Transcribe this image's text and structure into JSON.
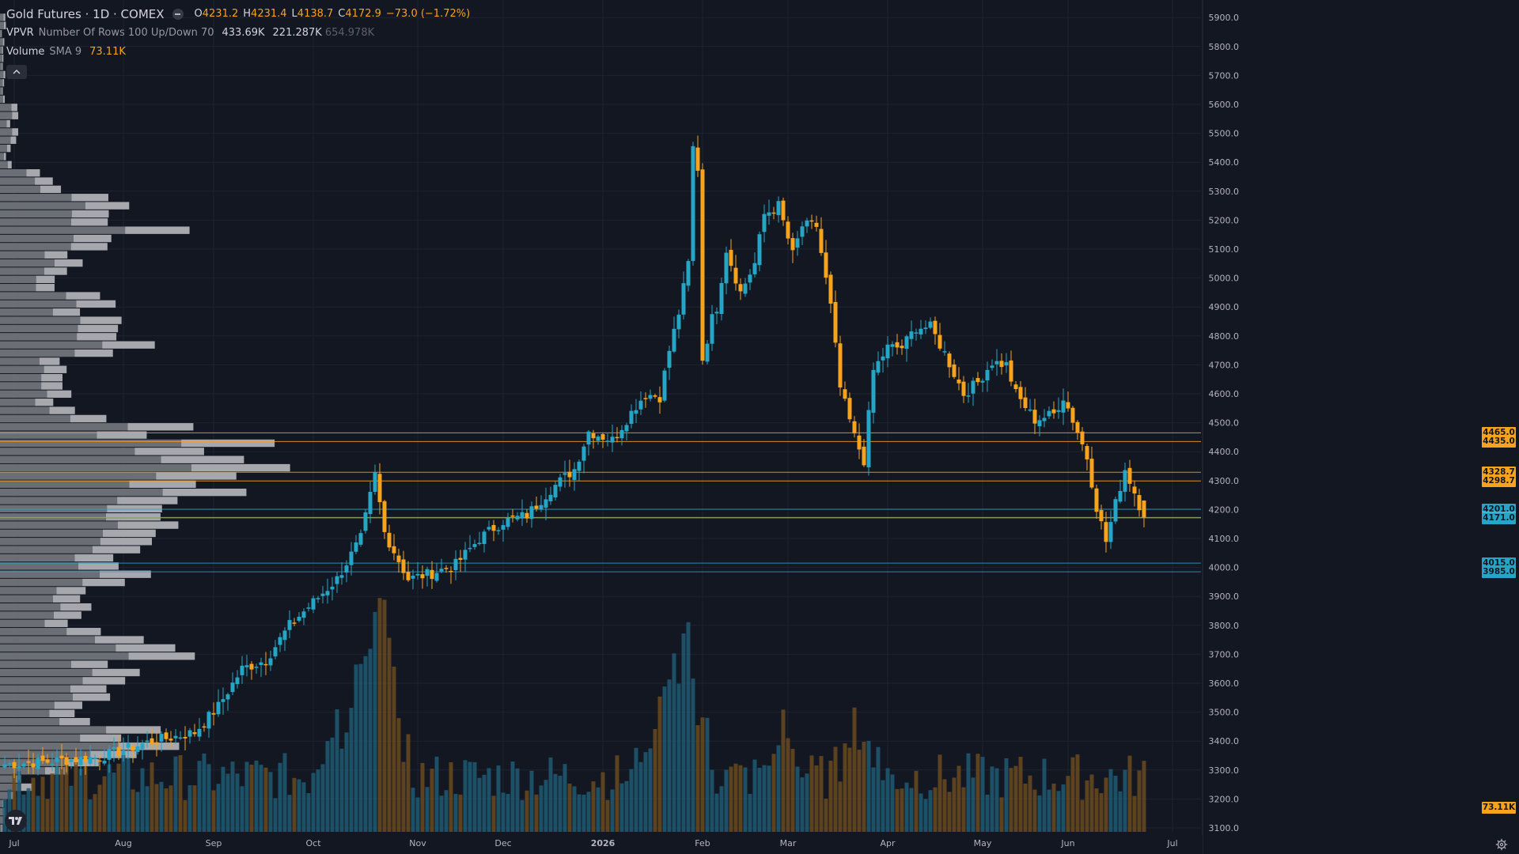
{
  "header": {
    "symbol": "Gold Futures · 1D · COMEX",
    "o_label": "O",
    "o_val": "4231.2",
    "h_label": "H",
    "h_val": "4231.4",
    "l_label": "L",
    "l_val": "4138.7",
    "c_label": "C",
    "c_val": "4172.9",
    "change": "−73.0 (−1.72%)"
  },
  "vpvr": {
    "name": "VPVR",
    "params": "Number Of Rows 100 Up/Down 70",
    "up": "433.69K",
    "down": "221.287K",
    "total": "654.978K"
  },
  "volume_ind": {
    "name": "Volume",
    "params": "SMA 9",
    "value": "73.11K"
  },
  "collapse_icon": "chevron-up-icon",
  "logo_icon": "tradingview-logo",
  "settings_icon": "gear-icon",
  "colors": {
    "background": "#131722",
    "up": "#26a6c7",
    "down": "#f7a31c",
    "grid": "#1f2330",
    "axis_text": "#b2b5be",
    "profile": "#8c8f96"
  },
  "price_tags": [
    {
      "label": "4465.0",
      "price": 4465,
      "kind": "down"
    },
    {
      "label": "4435.0",
      "price": 4435,
      "kind": "down"
    },
    {
      "label": "4328.7",
      "price": 4328.7,
      "kind": "down"
    },
    {
      "label": "4298.7",
      "price": 4298.7,
      "kind": "down"
    },
    {
      "label": "4201.0",
      "price": 4201,
      "kind": "up"
    },
    {
      "label": "4172.9",
      "price": 4172.9,
      "kind": "down"
    },
    {
      "label": "4171.0",
      "price": 4171,
      "kind": "up"
    },
    {
      "label": "4015.0",
      "price": 4015,
      "kind": "up"
    },
    {
      "label": "3985.0",
      "price": 3985,
      "kind": "up"
    },
    {
      "label": "73.11K",
      "price": null,
      "kind": "down"
    }
  ],
  "chart_data": {
    "type": "candlestick",
    "y_ticks": [
      "5900.0",
      "5800.0",
      "5700.0",
      "5600.0",
      "5500.0",
      "5400.0",
      "5300.0",
      "5200.0",
      "5100.0",
      "5000.0",
      "4900.0",
      "4800.0",
      "4700.0",
      "4600.0",
      "4500.0",
      "4400.0",
      "4300.0",
      "4200.0",
      "4100.0",
      "4000.0",
      "3900.0",
      "3800.0",
      "3700.0",
      "3600.0",
      "3500.0",
      "3400.0",
      "3300.0",
      "3200.0",
      "3100.0"
    ],
    "y_tick_values": [
      5900,
      5800,
      5700,
      5600,
      5500,
      5400,
      5300,
      5200,
      5100,
      5000,
      4900,
      4800,
      4700,
      4600,
      4500,
      4400,
      4300,
      4200,
      4100,
      4000,
      3900,
      3800,
      3700,
      3600,
      3500,
      3400,
      3300,
      3200,
      3100
    ],
    "ylim": [
      3085,
      5915
    ],
    "x_labels": [
      {
        "label": "Jul",
        "bar": 2
      },
      {
        "label": "Aug",
        "bar": 25
      },
      {
        "label": "Sep",
        "bar": 44
      },
      {
        "label": "Oct",
        "bar": 65
      },
      {
        "label": "Nov",
        "bar": 87
      },
      {
        "label": "Dec",
        "bar": 105
      },
      {
        "label": "2026",
        "bar": 126
      },
      {
        "label": "Feb",
        "bar": 147
      },
      {
        "label": "Mar",
        "bar": 165
      },
      {
        "label": "Apr",
        "bar": 186
      },
      {
        "label": "May",
        "bar": 206
      },
      {
        "label": "Jun",
        "bar": 224
      },
      {
        "label": "Jul",
        "bar": 246
      }
    ],
    "num_bars": 250,
    "anchors": [
      [
        0,
        3320
      ],
      [
        10,
        3330
      ],
      [
        20,
        3345
      ],
      [
        30,
        3395
      ],
      [
        40,
        3430
      ],
      [
        45,
        3520
      ],
      [
        50,
        3650
      ],
      [
        55,
        3680
      ],
      [
        60,
        3800
      ],
      [
        65,
        3880
      ],
      [
        70,
        3960
      ],
      [
        75,
        4100
      ],
      [
        78,
        4320
      ],
      [
        80,
        4120
      ],
      [
        85,
        3960
      ],
      [
        90,
        3980
      ],
      [
        95,
        4010
      ],
      [
        100,
        4100
      ],
      [
        105,
        4160
      ],
      [
        110,
        4180
      ],
      [
        115,
        4270
      ],
      [
        120,
        4340
      ],
      [
        123,
        4470
      ],
      [
        128,
        4440
      ],
      [
        133,
        4560
      ],
      [
        135,
        4600
      ],
      [
        138,
        4590
      ],
      [
        140,
        4750
      ],
      [
        142,
        4880
      ],
      [
        144,
        5050
      ],
      [
        145,
        5450
      ],
      [
        146,
        5380
      ],
      [
        147,
        4720
      ],
      [
        149,
        4860
      ],
      [
        150,
        4900
      ],
      [
        152,
        5100
      ],
      [
        155,
        4950
      ],
      [
        158,
        5050
      ],
      [
        160,
        5220
      ],
      [
        163,
        5250
      ],
      [
        166,
        5080
      ],
      [
        168,
        5180
      ],
      [
        171,
        5180
      ],
      [
        174,
        4900
      ],
      [
        176,
        4620
      ],
      [
        179,
        4450
      ],
      [
        181,
        4370
      ],
      [
        183,
        4680
      ],
      [
        186,
        4760
      ],
      [
        189,
        4760
      ],
      [
        192,
        4830
      ],
      [
        195,
        4830
      ],
      [
        198,
        4740
      ],
      [
        202,
        4600
      ],
      [
        205,
        4640
      ],
      [
        208,
        4710
      ],
      [
        211,
        4700
      ],
      [
        213,
        4600
      ],
      [
        217,
        4510
      ],
      [
        221,
        4530
      ],
      [
        223,
        4590
      ],
      [
        226,
        4470
      ],
      [
        228,
        4380
      ],
      [
        230,
        4210
      ],
      [
        232,
        4090
      ],
      [
        234,
        4220
      ],
      [
        236,
        4340
      ],
      [
        238,
        4260
      ],
      [
        240,
        4172.9
      ]
    ],
    "last_bar": {
      "open": 4231.2,
      "high": 4231.4,
      "low": 4138.7,
      "close": 4172.9
    },
    "volume_peaks": [
      {
        "bar": 77,
        "value": 250
      },
      {
        "bar": 80,
        "value": 210
      },
      {
        "bar": 144,
        "value": 250
      },
      {
        "bar": 138,
        "value": 180
      },
      {
        "bar": 70,
        "value": 170
      },
      {
        "bar": 180,
        "value": 140
      },
      {
        "bar": 164,
        "value": 130
      }
    ],
    "volume_profile": {
      "rows": 100,
      "peak_prices": [
        4010,
        3700,
        3400,
        4240,
        4330,
        4470,
        4820,
        5180
      ]
    }
  }
}
